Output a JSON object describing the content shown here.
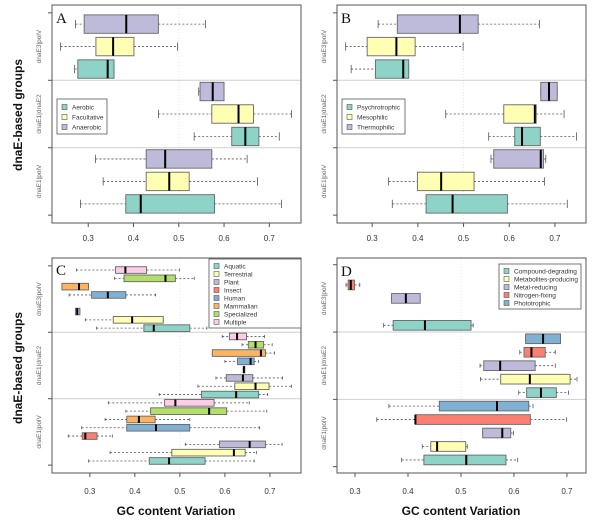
{
  "ylabel": "dnaE-based groups",
  "xlabel": "GC content Variation",
  "chart_data": [
    {
      "panel": "A",
      "type": "boxplot",
      "groups": [
        "dnaE1|polV",
        "dnaE1|dnaE2",
        "dnaE3|polV"
      ],
      "categories": [
        "Aerobic",
        "Facultative",
        "Anaerobic"
      ],
      "colors": [
        "#8dd3c7",
        "#ffffb3",
        "#bebada"
      ],
      "legend": {
        "placement": "middle-left"
      },
      "xlim": [
        0.22,
        0.77
      ],
      "xticks": [
        "0.3",
        "0.4",
        "0.5",
        "0.6",
        "0.7"
      ],
      "series": [
        [
          [
            0.283,
            0.383,
            0.416,
            0.579,
            0.727
          ],
          [
            0.333,
            0.428,
            0.479,
            0.523,
            0.674
          ],
          [
            0.316,
            0.428,
            0.47,
            0.573,
            0.651
          ]
        ],
        [
          [
            0.534,
            0.617,
            0.647,
            0.677,
            0.722
          ],
          [
            0.455,
            0.573,
            0.632,
            0.665,
            0.749
          ],
          [
            0.544,
            0.547,
            0.575,
            0.6,
            0.6
          ]
        ],
        [
          [
            0.27,
            0.277,
            0.343,
            0.357,
            0.357
          ],
          [
            0.239,
            0.317,
            0.355,
            0.401,
            0.497
          ],
          [
            0.272,
            0.291,
            0.384,
            0.455,
            0.559
          ]
        ]
      ]
    },
    {
      "panel": "B",
      "type": "boxplot",
      "groups": [
        "dnaE1|polV",
        "dnaE1|dnaE2",
        "dnaE3|polV"
      ],
      "categories": [
        "Psychrotrophic",
        "Mesophilic",
        "Thermophilic"
      ],
      "colors": [
        "#8dd3c7",
        "#ffffb3",
        "#bebada"
      ],
      "legend": {
        "placement": "middle-left"
      },
      "xlim": [
        0.223,
        0.768
      ],
      "xticks": [
        "0.3",
        "0.4",
        "0.5",
        "0.6",
        "0.7"
      ],
      "series": [
        [
          [
            0.344,
            0.418,
            0.476,
            0.596,
            0.727
          ],
          [
            0.336,
            0.399,
            0.451,
            0.523,
            0.677
          ],
          [
            0.56,
            0.566,
            0.669,
            0.675,
            0.68
          ]
        ],
        [
          [
            0.555,
            0.612,
            0.628,
            0.668,
            0.747
          ],
          [
            0.461,
            0.588,
            0.656,
            0.659,
            0.72
          ],
          [
            0.669,
            0.669,
            0.687,
            0.705,
            0.705
          ]
        ],
        [
          [
            0.254,
            0.307,
            0.368,
            0.38,
            0.38
          ],
          [
            0.242,
            0.289,
            0.353,
            0.394,
            0.499
          ],
          [
            0.313,
            0.355,
            0.492,
            0.532,
            0.666
          ]
        ]
      ]
    },
    {
      "panel": "C",
      "type": "boxplot",
      "groups": [
        "dnaE1|polV",
        "dnaE1|dnaE2",
        "dnaE3|polV"
      ],
      "categories": [
        "Aquatic",
        "Terrestrial",
        "Plant",
        "Insect",
        "Human",
        "Mammalian",
        "Specialized",
        "Multiple"
      ],
      "colors": [
        "#8dd3c7",
        "#ffffb3",
        "#bebada",
        "#fb8072",
        "#80b1d3",
        "#fdb462",
        "#b3de69",
        "#fccde5"
      ],
      "legend": {
        "placement": "top-right"
      },
      "xlim": [
        0.216,
        0.769
      ],
      "xticks": [
        "0.3",
        "0.4",
        "0.5",
        "0.6",
        "0.7"
      ],
      "series": [
        [
          [
            0.297,
            0.432,
            0.476,
            0.556,
            0.665
          ],
          [
            0.345,
            0.482,
            0.62,
            0.645,
            0.67
          ],
          [
            0.512,
            0.588,
            0.655,
            0.69,
            0.727
          ],
          [
            0.252,
            0.283,
            0.29,
            0.316,
            0.35
          ],
          [
            0.282,
            0.382,
            0.447,
            0.522,
            0.677
          ],
          [
            0.334,
            0.382,
            0.409,
            0.445,
            0.522
          ],
          [
            0.38,
            0.435,
            0.565,
            0.604,
            0.693
          ],
          [
            0.341,
            0.466,
            0.49,
            0.576,
            0.654
          ]
        ],
        [
          [
            0.454,
            0.548,
            0.625,
            0.675,
            0.695
          ],
          [
            0.54,
            0.622,
            0.668,
            0.698,
            0.748
          ],
          [
            0.58,
            0.603,
            0.64,
            0.662,
            0.728
          ],
          [
            0.641,
            0.641,
            0.642,
            0.643,
            0.643
          ],
          [
            0.6,
            0.628,
            0.657,
            0.665,
            0.675
          ],
          [
            0.572,
            0.572,
            0.68,
            0.69,
            0.71
          ],
          [
            0.638,
            0.652,
            0.668,
            0.686,
            0.705
          ],
          [
            0.594,
            0.61,
            0.627,
            0.648,
            0.688
          ]
        ],
        [
          [
            0.315,
            0.42,
            0.442,
            0.522,
            0.56
          ],
          [
            0.29,
            0.352,
            0.394,
            0.463,
            0.463
          ],
          [
            0.268,
            0.268,
            0.272,
            0.278,
            0.278
          ],
          null,
          [
            0.254,
            0.304,
            0.34,
            0.38,
            0.446
          ],
          [
            0.238,
            0.238,
            0.276,
            0.297,
            0.297
          ],
          [
            0.355,
            0.376,
            0.468,
            0.49,
            0.532
          ],
          [
            0.27,
            0.357,
            0.379,
            0.426,
            0.499
          ]
        ]
      ]
    },
    {
      "panel": "D",
      "type": "boxplot",
      "groups": [
        "dnaE1|polV",
        "dnaE1|dnaE2",
        "dnaE3|polV"
      ],
      "categories": [
        "Compound-degrading",
        "Metabolites-producing",
        "Metal-reducing",
        "Nitrogen-fixing",
        "Phototrophic"
      ],
      "colors": [
        "#8dd3c7",
        "#ffffb3",
        "#bebada",
        "#fb8072",
        "#80b1d3"
      ],
      "legend": {
        "placement": "top-right"
      },
      "xlim": [
        0.266,
        0.736
      ],
      "xticks": [
        "0.3",
        "0.4",
        "0.5",
        "0.6",
        "0.7"
      ],
      "series": [
        [
          [
            0.388,
            0.43,
            0.51,
            0.585,
            0.607
          ],
          [
            0.427,
            0.443,
            0.455,
            0.509,
            0.512
          ],
          [
            0.541,
            0.541,
            0.578,
            0.594,
            0.599
          ],
          [
            0.341,
            0.414,
            0.414,
            0.631,
            0.699
          ],
          [
            0.364,
            0.459,
            0.568,
            0.628,
            0.636
          ]
        ],
        [
          [
            0.609,
            0.624,
            0.651,
            0.68,
            0.703
          ],
          [
            0.537,
            0.575,
            0.63,
            0.706,
            0.719
          ],
          [
            0.536,
            0.543,
            0.574,
            0.64,
            0.678
          ],
          [
            0.611,
            0.619,
            0.633,
            0.659,
            0.678
          ],
          [
            0.622,
            0.622,
            0.655,
            0.688,
            0.688
          ]
        ],
        [
          [
            0.354,
            0.372,
            0.432,
            0.519,
            0.523
          ],
          null,
          [
            0.369,
            0.369,
            0.396,
            0.423,
            0.423
          ],
          [
            0.283,
            0.287,
            0.292,
            0.299,
            0.309
          ],
          null
        ]
      ]
    }
  ]
}
